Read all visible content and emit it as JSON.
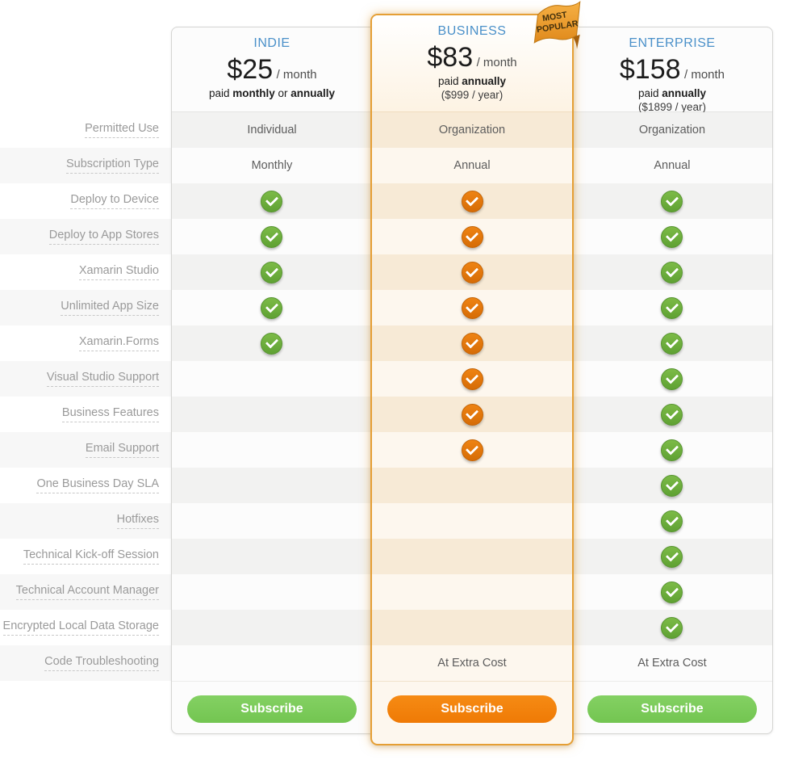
{
  "ribbon": {
    "lines": [
      "MOST",
      "POPULAR"
    ]
  },
  "features": [
    "Permitted Use",
    "Subscription Type",
    "Deploy to Device",
    "Deploy to App Stores",
    "Xamarin Studio",
    "Unlimited App Size",
    "Xamarin.Forms",
    "Visual Studio Support",
    "Business Features",
    "Email Support",
    "One Business Day SLA",
    "Hotfixes",
    "Technical Kick-off Session",
    "Technical Account Manager",
    "Encrypted Local Data Storage",
    "Code Troubleshooting"
  ],
  "plans": [
    {
      "id": "indie",
      "name": "INDIE",
      "price": "$25",
      "per": "/ month",
      "billing": [
        {
          "text": "paid ",
          "bold": false
        },
        {
          "text": "monthly",
          "bold": true
        },
        {
          "text": " or ",
          "bold": false
        },
        {
          "text": "annually",
          "bold": true
        }
      ],
      "year_note": "",
      "check_color": "green",
      "subscribe_label": "Subscribe",
      "cells": [
        "Individual",
        "Monthly",
        "check",
        "check",
        "check",
        "check",
        "check",
        "",
        "",
        "",
        "",
        "",
        "",
        "",
        "",
        ""
      ]
    },
    {
      "id": "business",
      "name": "BUSINESS",
      "price": "$83",
      "per": "/ month",
      "billing": [
        {
          "text": "paid ",
          "bold": false
        },
        {
          "text": "annually",
          "bold": true
        }
      ],
      "year_note": "($999 / year)",
      "check_color": "orange",
      "highlight": true,
      "subscribe_label": "Subscribe",
      "cells": [
        "Organization",
        "Annual",
        "check",
        "check",
        "check",
        "check",
        "check",
        "check",
        "check",
        "check",
        "",
        "",
        "",
        "",
        "",
        "At Extra Cost"
      ]
    },
    {
      "id": "enterprise",
      "name": "ENTERPRISE",
      "price": "$158",
      "per": "/ month",
      "billing": [
        {
          "text": "paid ",
          "bold": false
        },
        {
          "text": "annually",
          "bold": true
        }
      ],
      "year_note": "($1899 / year)",
      "check_color": "green",
      "subscribe_label": "Subscribe",
      "cells": [
        "Organization",
        "Annual",
        "check",
        "check",
        "check",
        "check",
        "check",
        "check",
        "check",
        "check",
        "check",
        "check",
        "check",
        "check",
        "check",
        "At Extra Cost"
      ]
    }
  ],
  "colors": {
    "accent_blue": "#4a90c9",
    "check_green": "#6aae3c",
    "check_orange": "#e2750c",
    "button_green": "#7ccb5e",
    "button_orange": "#f5820c",
    "highlight_border": "#e59f35",
    "ribbon_orange": "#eda338",
    "row_gray": "#f2f2f1",
    "row_cream": "#f7ead6"
  }
}
